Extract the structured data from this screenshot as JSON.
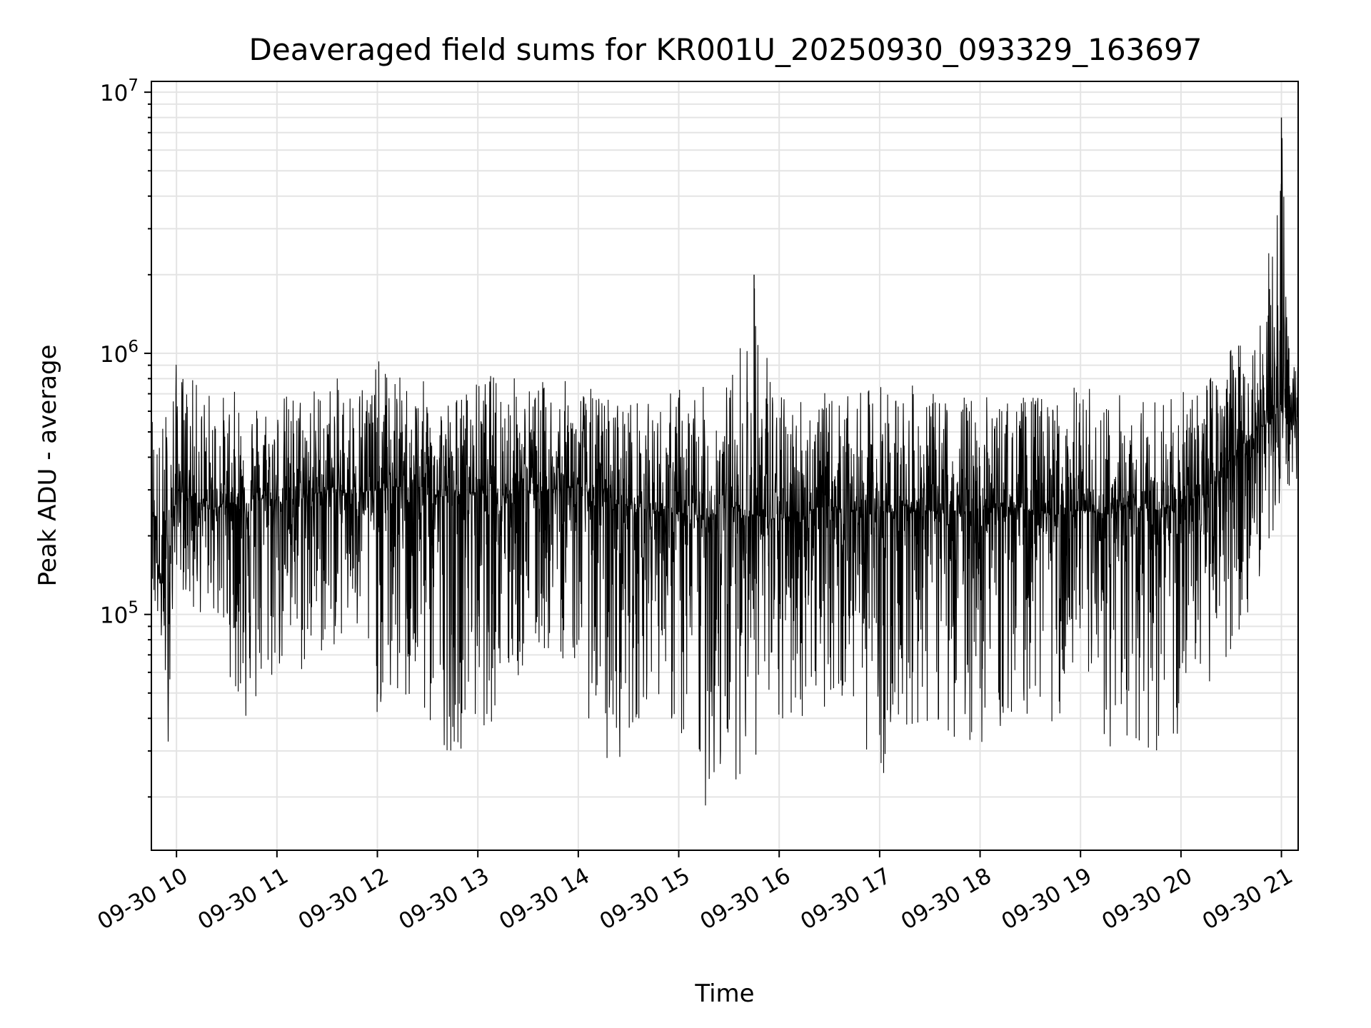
{
  "chart_data": {
    "type": "line",
    "title": "Deaveraged field sums for KR001U_20250930_093329_163697",
    "xlabel": "Time",
    "ylabel": "Peak ADU - average",
    "yscale": "log",
    "xlim": [
      "2025-09-30 09:45",
      "2025-09-30 21:10"
    ],
    "ylim": [
      12500,
      11000000
    ],
    "grid": "on, major and minor",
    "line_color": "#000000",
    "x_ticks": [
      "2025-09-30 10:00",
      "2025-09-30 11:00",
      "2025-09-30 12:00",
      "2025-09-30 13:00",
      "2025-09-30 14:00",
      "2025-09-30 15:00",
      "2025-09-30 16:00",
      "2025-09-30 17:00",
      "2025-09-30 18:00",
      "2025-09-30 19:00",
      "2025-09-30 20:00",
      "2025-09-30 21:00"
    ],
    "x_tick_labels": [
      "09-30 10",
      "09-30 11",
      "09-30 12",
      "09-30 13",
      "09-30 14",
      "09-30 15",
      "09-30 16",
      "09-30 17",
      "09-30 18",
      "09-30 19",
      "09-30 20",
      "09-30 21"
    ],
    "y_ticks": [
      {
        "value": 100000,
        "base": "10",
        "exp": "5"
      },
      {
        "value": 1000000,
        "base": "10",
        "exp": "6"
      },
      {
        "value": 10000000,
        "base": "10",
        "exp": "7"
      }
    ],
    "series": [
      {
        "x": [
          "2025-09-30 09:45",
          "2025-09-30 09:50",
          "2025-09-30 09:55",
          "2025-09-30 10:00",
          "2025-09-30 10:10",
          "2025-09-30 10:20",
          "2025-09-30 10:30",
          "2025-09-30 10:40",
          "2025-09-30 10:50",
          "2025-09-30 11:00",
          "2025-09-30 11:15",
          "2025-09-30 11:30",
          "2025-09-30 11:45",
          "2025-09-30 12:00",
          "2025-09-30 12:15",
          "2025-09-30 12:30",
          "2025-09-30 12:45",
          "2025-09-30 13:00",
          "2025-09-30 13:15",
          "2025-09-30 13:30",
          "2025-09-30 13:45",
          "2025-09-30 14:00",
          "2025-09-30 14:15",
          "2025-09-30 14:30",
          "2025-09-30 14:45",
          "2025-09-30 15:00",
          "2025-09-30 15:15",
          "2025-09-30 15:30",
          "2025-09-30 15:45",
          "2025-09-30 16:00",
          "2025-09-30 16:15",
          "2025-09-30 16:30",
          "2025-09-30 16:45",
          "2025-09-30 17:00",
          "2025-09-30 17:15",
          "2025-09-30 17:30",
          "2025-09-30 17:45",
          "2025-09-30 18:00",
          "2025-09-30 18:15",
          "2025-09-30 18:30",
          "2025-09-30 18:45",
          "2025-09-30 19:00",
          "2025-09-30 19:15",
          "2025-09-30 19:30",
          "2025-09-30 19:45",
          "2025-09-30 20:00",
          "2025-09-30 20:15",
          "2025-09-30 20:30",
          "2025-09-30 20:45",
          "2025-09-30 21:00",
          "2025-09-30 21:05"
        ],
        "y": [
          300000,
          130000,
          160000,
          300000,
          280000,
          250000,
          270000,
          260000,
          280000,
          270000,
          280000,
          300000,
          290000,
          300000,
          310000,
          290000,
          280000,
          300000,
          290000,
          300000,
          300000,
          310000,
          270000,
          260000,
          250000,
          240000,
          230000,
          260000,
          240000,
          230000,
          250000,
          260000,
          250000,
          240000,
          260000,
          250000,
          240000,
          250000,
          260000,
          250000,
          240000,
          250000,
          240000,
          260000,
          250000,
          260000,
          300000,
          400000,
          500000,
          600000,
          620000
        ],
        "y_high": [
          700000,
          500000,
          800000,
          950000,
          800000,
          750000,
          700000,
          760000,
          700000,
          700000,
          760000,
          800000,
          820000,
          950000,
          820000,
          780000,
          700000,
          800000,
          900000,
          780000,
          800000,
          780000,
          720000,
          700000,
          640000,
          780000,
          750000,
          800000,
          2000000,
          700000,
          750000,
          700000,
          680000,
          800000,
          780000,
          700000,
          720000,
          700000,
          680000,
          700000,
          700000,
          780000,
          700000,
          750000,
          700000,
          700000,
          820000,
          1100000,
          1300000,
          8000000,
          900000
        ],
        "y_low": [
          100000,
          80000,
          32000,
          150000,
          90000,
          110000,
          65000,
          35000,
          38000,
          57000,
          54000,
          70000,
          80000,
          40000,
          40000,
          33000,
          29000,
          34000,
          42000,
          60000,
          70000,
          60000,
          22000,
          31000,
          55000,
          30000,
          17000,
          22000,
          27000,
          30000,
          40000,
          45000,
          40000,
          22000,
          36000,
          35000,
          33000,
          30000,
          34000,
          42000,
          37000,
          36000,
          30000,
          28000,
          29000,
          27000,
          50000,
          70000,
          120000,
          250000,
          300000
        ]
      }
    ]
  }
}
